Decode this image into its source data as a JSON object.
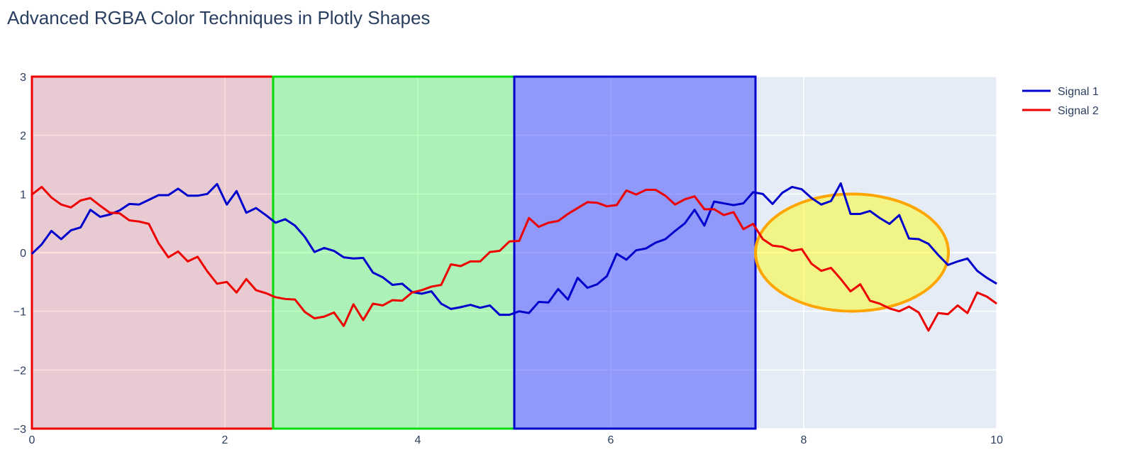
{
  "chart_data": {
    "type": "line",
    "title": "Advanced RGBA Color Techniques in Plotly Shapes",
    "xlabel": "",
    "ylabel": "",
    "xlim": [
      0,
      10
    ],
    "ylim": [
      -3,
      3
    ],
    "x_ticks": [
      0,
      2,
      4,
      6,
      8,
      10
    ],
    "y_ticks": [
      -3,
      -2,
      -1,
      0,
      1,
      2,
      3
    ],
    "x_tick_labels": [
      "0",
      "2",
      "4",
      "6",
      "8",
      "10"
    ],
    "y_tick_labels": [
      "−3",
      "−2",
      "−1",
      "0",
      "1",
      "2",
      "3"
    ],
    "grid": true,
    "legend_position": "top-right, outside plot",
    "plot_background": "#e5ecf6",
    "x": [
      0,
      0.101,
      0.202,
      0.303,
      0.404,
      0.505,
      0.606,
      0.707,
      0.808,
      0.909,
      1.01,
      1.111,
      1.212,
      1.313,
      1.414,
      1.515,
      1.616,
      1.717,
      1.818,
      1.919,
      2.02,
      2.121,
      2.222,
      2.323,
      2.424,
      2.525,
      2.626,
      2.727,
      2.828,
      2.929,
      3.03,
      3.131,
      3.232,
      3.333,
      3.434,
      3.535,
      3.636,
      3.737,
      3.838,
      3.939,
      4.04,
      4.141,
      4.242,
      4.343,
      4.444,
      4.545,
      4.646,
      4.747,
      4.848,
      4.949,
      5.051,
      5.152,
      5.253,
      5.354,
      5.455,
      5.556,
      5.657,
      5.758,
      5.859,
      5.96,
      6.061,
      6.162,
      6.263,
      6.364,
      6.465,
      6.566,
      6.667,
      6.768,
      6.869,
      6.97,
      7.071,
      7.172,
      7.273,
      7.374,
      7.475,
      7.576,
      7.677,
      7.778,
      7.879,
      7.98,
      8.081,
      8.182,
      8.283,
      8.384,
      8.485,
      8.586,
      8.687,
      8.788,
      8.889,
      8.99,
      9.091,
      9.192,
      9.293,
      9.394,
      9.495,
      9.596,
      9.697,
      9.798,
      9.899,
      10
    ],
    "series": [
      {
        "name": "Signal 1",
        "color": "#0000cd",
        "values": [
          -0.02,
          0.14,
          0.37,
          0.23,
          0.38,
          0.43,
          0.73,
          0.61,
          0.65,
          0.72,
          0.83,
          0.82,
          0.9,
          0.98,
          0.98,
          1.09,
          0.97,
          0.97,
          1.0,
          1.17,
          0.82,
          1.05,
          0.68,
          0.76,
          0.64,
          0.51,
          0.57,
          0.46,
          0.27,
          0.01,
          0.08,
          0.03,
          -0.08,
          -0.1,
          -0.09,
          -0.34,
          -0.42,
          -0.55,
          -0.53,
          -0.67,
          -0.7,
          -0.66,
          -0.87,
          -0.96,
          -0.93,
          -0.89,
          -0.94,
          -0.9,
          -1.06,
          -1.06,
          -1.0,
          -1.03,
          -0.84,
          -0.85,
          -0.62,
          -0.8,
          -0.43,
          -0.6,
          -0.54,
          -0.4,
          -0.02,
          -0.12,
          0.04,
          0.07,
          0.17,
          0.23,
          0.37,
          0.5,
          0.73,
          0.46,
          0.87,
          0.84,
          0.81,
          0.84,
          1.03,
          1.0,
          0.83,
          1.02,
          1.12,
          1.08,
          0.93,
          0.82,
          0.88,
          1.18,
          0.66,
          0.66,
          0.71,
          0.59,
          0.49,
          0.64,
          0.24,
          0.23,
          0.15,
          -0.04,
          -0.21,
          -0.15,
          -0.1,
          -0.31,
          -0.43,
          -0.53
        ]
      },
      {
        "name": "Signal 2",
        "color": "#ee0000",
        "values": [
          0.99,
          1.12,
          0.94,
          0.82,
          0.77,
          0.89,
          0.93,
          0.8,
          0.68,
          0.67,
          0.55,
          0.53,
          0.49,
          0.16,
          -0.08,
          0.02,
          -0.15,
          -0.07,
          -0.32,
          -0.53,
          -0.5,
          -0.68,
          -0.45,
          -0.64,
          -0.69,
          -0.76,
          -0.79,
          -0.8,
          -1.01,
          -1.12,
          -1.09,
          -1.02,
          -1.25,
          -0.88,
          -1.15,
          -0.87,
          -0.9,
          -0.81,
          -0.82,
          -0.68,
          -0.64,
          -0.58,
          -0.55,
          -0.2,
          -0.23,
          -0.15,
          -0.15,
          0.01,
          0.03,
          0.19,
          0.2,
          0.59,
          0.44,
          0.51,
          0.54,
          0.66,
          0.76,
          0.86,
          0.85,
          0.79,
          0.81,
          1.06,
          0.99,
          1.07,
          1.07,
          0.97,
          0.82,
          0.91,
          0.96,
          0.74,
          0.74,
          0.64,
          0.69,
          0.4,
          0.49,
          0.23,
          0.12,
          0.1,
          0.03,
          0.06,
          -0.19,
          -0.31,
          -0.26,
          -0.45,
          -0.66,
          -0.54,
          -0.82,
          -0.87,
          -0.95,
          -1.0,
          -0.92,
          -1.02,
          -1.33,
          -1.03,
          -1.05,
          -0.9,
          -1.03,
          -0.68,
          -0.75,
          -0.87
        ]
      }
    ],
    "shapes": [
      {
        "kind": "rect",
        "x0": 0,
        "x1": 2.5,
        "y0": -3,
        "y1": 3,
        "fill": "rgba(255,0,0,0.14)",
        "line": "#ee0000"
      },
      {
        "kind": "rect",
        "x0": 2.5,
        "x1": 5,
        "y0": -3,
        "y1": 3,
        "fill": "rgba(0,255,0,0.25)",
        "line": "#00dd00"
      },
      {
        "kind": "rect",
        "x0": 5,
        "x1": 7.5,
        "y0": -3,
        "y1": 3,
        "fill": "rgba(40,50,255,0.45)",
        "line": "#0000cd"
      },
      {
        "kind": "circle",
        "x0": 7.5,
        "x1": 9.5,
        "y0": -1,
        "y1": 1,
        "fill": "rgba(255,255,0,0.45)",
        "line": "#ffa500"
      }
    ]
  }
}
